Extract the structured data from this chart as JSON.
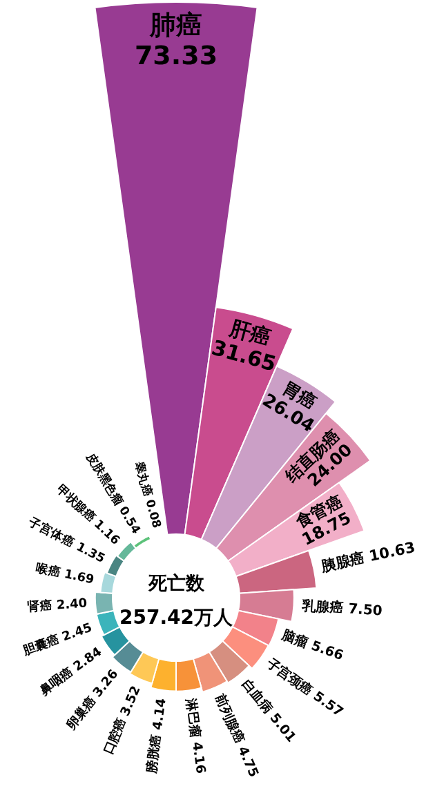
{
  "chart_data": {
    "type": "other",
    "title": "死亡数",
    "subtitle": "257.42万人",
    "categories": [
      "肺癌",
      "肝癌",
      "胃癌",
      "结直肠癌",
      "食管癌",
      "胰腺癌",
      "乳腺癌",
      "脑瘤",
      "子宫颈癌",
      "白血病",
      "前列腺癌",
      "淋巴瘤",
      "膀胱癌",
      "口腔癌",
      "卵巢癌",
      "鼻咽癌",
      "胆囊癌",
      "肾癌",
      "喉癌",
      "子宫体癌",
      "甲状腺癌",
      "皮肤黑色瘤",
      "睾丸癌"
    ],
    "values": [
      73.33,
      31.65,
      26.04,
      24.0,
      18.75,
      10.63,
      7.5,
      5.66,
      5.57,
      5.01,
      4.75,
      4.16,
      4.14,
      3.52,
      3.26,
      2.84,
      2.45,
      2.4,
      1.69,
      1.35,
      1.16,
      0.54,
      0.08
    ],
    "value_labels": [
      "73.33",
      "31.65",
      "26.04",
      "24.00",
      "18.75",
      "10.63",
      "7.50",
      "5.66",
      "5.57",
      "5.01",
      "4.75",
      "4.16",
      "4.14",
      "3.52",
      "3.26",
      "2.84",
      "2.45",
      "2.40",
      "1.69",
      "1.35",
      "1.16",
      "0.54",
      "0.08"
    ],
    "colors": [
      "#983b92",
      "#c94c8e",
      "#cb9fc6",
      "#de8fae",
      "#f2afc8",
      "#cb6680",
      "#d67c93",
      "#f2828a",
      "#fc8f7e",
      "#d68f80",
      "#f09378",
      "#f79239",
      "#fdb12e",
      "#fec856",
      "#568c95",
      "#26939f",
      "#3bb4bb",
      "#79b4b1",
      "#a7d8dc",
      "#4a8582",
      "#65b89a",
      "#5cc27a",
      "#4fc46c"
    ]
  }
}
